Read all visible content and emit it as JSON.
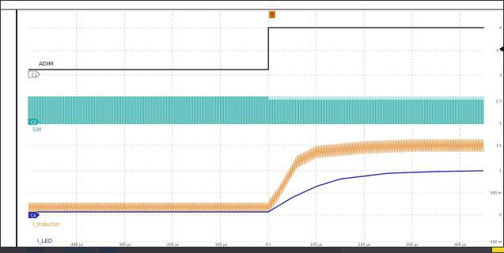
{
  "channels": [
    {
      "id": "ch1",
      "badge": "C1",
      "name": "ADIM",
      "color": "#111111"
    },
    {
      "id": "ch2",
      "badge": "C2",
      "name": "SW",
      "color": "#2aa9a6"
    },
    {
      "id": "ch3",
      "badge": "C3",
      "name": "I_Inductor",
      "color": "#e38c2f"
    },
    {
      "id": "ch4",
      "badge": "C4",
      "name": "I_LED",
      "color": "#2630b8"
    }
  ],
  "trigger_marker": {
    "label": "T",
    "color": "#e07a10"
  },
  "chart_data": {
    "type": "line",
    "x_unit": "µs",
    "xlim": [
      -500,
      450
    ],
    "x_ticks": [
      {
        "value": -400,
        "label": "-400 µs"
      },
      {
        "value": -300,
        "label": "-300 µs"
      },
      {
        "value": -200,
        "label": "-200 µs"
      },
      {
        "value": -100,
        "label": "-100 µs"
      },
      {
        "value": 0,
        "label": "0 s"
      },
      {
        "value": 100,
        "label": "100 µs"
      },
      {
        "value": 200,
        "label": "200 µs"
      },
      {
        "value": 300,
        "label": "300 µs"
      },
      {
        "value": 400,
        "label": "400 µs"
      }
    ],
    "right_axis_labels": [
      "4",
      "3.5",
      "3",
      "2.5",
      "2",
      "1.5",
      "1",
      "500 m",
      "0",
      "-500 m"
    ],
    "series": [
      {
        "name": "ADIM",
        "x": [
          -500,
          0,
          0,
          450
        ],
        "y": [
          0,
          0,
          1,
          1
        ]
      },
      {
        "name": "SW",
        "x": [
          -500,
          450
        ],
        "y": [
          1,
          1
        ]
      },
      {
        "name": "I_Inductor",
        "x": [
          -500,
          0,
          20,
          60,
          100,
          200,
          300,
          450
        ],
        "y": [
          0.35,
          0.35,
          0.55,
          1.05,
          1.2,
          1.27,
          1.3,
          1.3
        ]
      },
      {
        "name": "I_LED",
        "x": [
          -500,
          0,
          50,
          100,
          150,
          250,
          350,
          450
        ],
        "y": [
          0,
          0,
          0.35,
          0.62,
          0.8,
          0.94,
          0.98,
          1.0
        ]
      }
    ]
  }
}
